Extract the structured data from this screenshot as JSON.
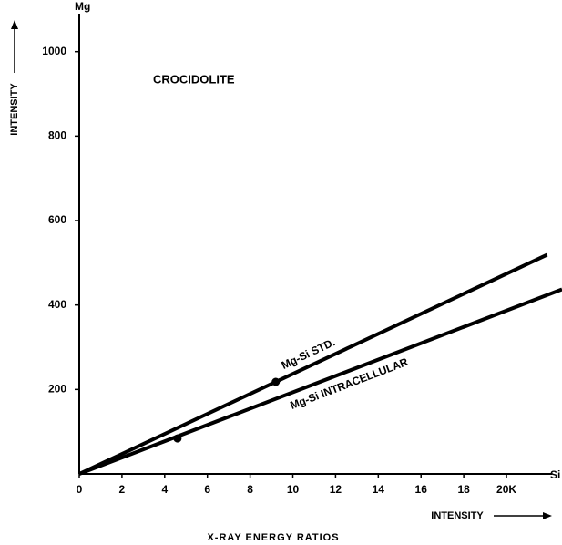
{
  "chart_data": {
    "type": "line",
    "title": "X-RAY ENERGY RATIOS",
    "annotation": "CROCIDOLITE",
    "x_label": "INTENSITY",
    "y_label": "INTENSITY",
    "x_unit": "Si",
    "y_unit": "Mg",
    "xlim": [
      0,
      22.6
    ],
    "ylim": [
      0,
      1090
    ],
    "xticks": [
      0,
      2,
      4,
      6,
      8,
      10,
      12,
      14,
      16,
      18,
      {
        "value": 20,
        "label": "20K"
      }
    ],
    "yticks": [
      200,
      400,
      600,
      800,
      1000
    ],
    "grid": false,
    "series": [
      {
        "name": "Mg-Si STD.",
        "color": "#000000",
        "x": [
          0,
          21.9
        ],
        "values": [
          0,
          519
        ],
        "points": [
          {
            "x": 9.2,
            "y": 218
          }
        ]
      },
      {
        "name": "Mg-Si INTRACELLULAR",
        "color": "#000000",
        "x": [
          0,
          22.6
        ],
        "values": [
          0,
          437
        ],
        "points": [
          {
            "x": 4.6,
            "y": 84
          }
        ]
      }
    ]
  }
}
